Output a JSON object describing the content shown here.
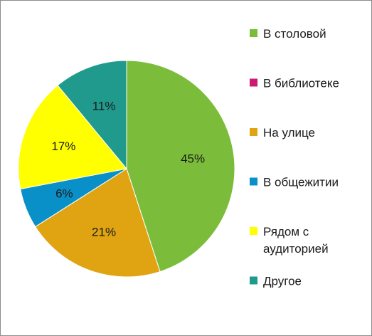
{
  "chart_data": {
    "type": "pie",
    "categories": [
      "В столовой",
      "В библиотеке",
      "На улице",
      "В общежитии",
      "Рядом с аудиторией",
      "Другое"
    ],
    "legend_lines": [
      [
        "В столовой"
      ],
      [
        "В библиотеке"
      ],
      [
        "На улице"
      ],
      [
        "В общежитии"
      ],
      [
        "Рядом с",
        "аудиторией"
      ],
      [
        "Другое"
      ]
    ],
    "values": [
      45,
      0,
      21,
      6,
      17,
      11
    ],
    "data_labels": [
      "45%",
      "",
      "21%",
      "6%",
      "17%",
      "11%"
    ],
    "colors": [
      "#7bbd3a",
      "#cc1a72",
      "#e0a412",
      "#0a90c8",
      "#ffff00",
      "#1f9a8c"
    ],
    "legend_position": "right",
    "start_angle_deg": 0,
    "direction": "clockwise"
  }
}
